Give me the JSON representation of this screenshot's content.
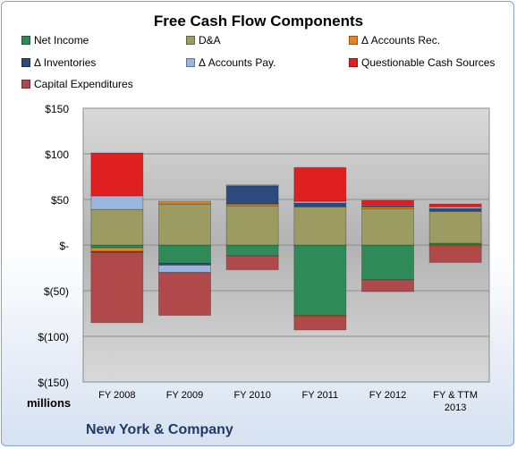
{
  "chart_data": {
    "type": "bar",
    "stacked": true,
    "title": "Free Cash Flow Components",
    "units_label": "millions",
    "source_label": "New York & Company",
    "categories": [
      [
        "FY 2008"
      ],
      [
        "FY 2009"
      ],
      [
        "FY 2010"
      ],
      [
        "FY 2011"
      ],
      [
        "FY 2012"
      ],
      [
        "FY & TTM",
        "2013"
      ]
    ],
    "ylim": [
      -150,
      150
    ],
    "yticks": [
      150,
      100,
      50,
      0,
      -50,
      -100,
      -150
    ],
    "ytick_labels": [
      "$150",
      "$100",
      "$50",
      "$-",
      "$(50)",
      "$(100)",
      "$(150)"
    ],
    "grid": true,
    "legend_position": "top",
    "series": [
      {
        "name": "Net Income",
        "color": "#2e8b57",
        "values": [
          -3,
          -20,
          -12,
          -77,
          -38,
          2
        ]
      },
      {
        "name": "D&A",
        "color": "#9b9b62",
        "values": [
          39,
          45,
          43,
          42,
          40,
          35
        ]
      },
      {
        "name": "Δ Accounts Rec.",
        "color": "#e8821e",
        "values": [
          -4,
          3,
          2,
          -1,
          2,
          -1
        ]
      },
      {
        "name": "Δ Inventories",
        "color": "#2b4a7e",
        "values": [
          -1,
          -2,
          20,
          4,
          1,
          3
        ]
      },
      {
        "name": "Δ Accounts Pay.",
        "color": "#9ab6dd",
        "values": [
          15,
          -8,
          1,
          2,
          1,
          2
        ]
      },
      {
        "name": "Questionable Cash Sources",
        "color": "#e02020",
        "values": [
          47,
          0,
          0,
          37,
          5,
          3
        ]
      },
      {
        "name": "Capital Expenditures",
        "color": "#b04a4a",
        "values": [
          -77,
          -47,
          -15,
          -15,
          -13,
          -18
        ]
      }
    ]
  }
}
